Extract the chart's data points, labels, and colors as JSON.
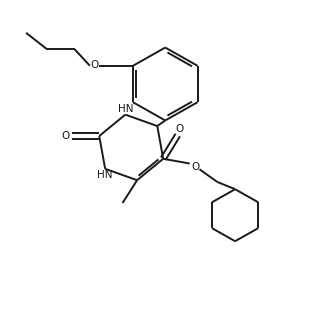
{
  "bg_color": "#ffffff",
  "line_color": "#1a1a1a",
  "line_width": 1.4,
  "figsize": [
    3.24,
    3.17
  ],
  "dpi": 100,
  "xlim": [
    0,
    10
  ],
  "ylim": [
    0,
    10
  ]
}
